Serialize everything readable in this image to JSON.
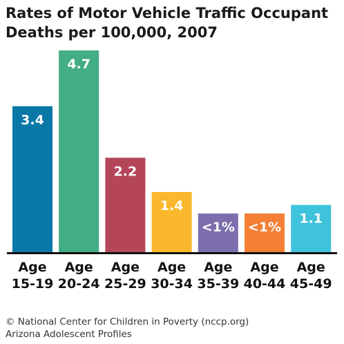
{
  "title_line1": "Rates of Motor Vehicle Traffic Occupant",
  "title_line2": "Deaths per 100,000, 2007",
  "footer_line1": "© National Center for Children in Poverty (nccp.org)",
  "footer_line2": "Arizona Adolescent Profiles",
  "chart_data": {
    "type": "bar",
    "title": "Rates of Motor Vehicle Traffic Occupant Deaths per 100,000, 2007",
    "categories": [
      "Age 15-19",
      "Age 20-24",
      "Age 25-29",
      "Age 30-34",
      "Age 35-39",
      "Age 40-44",
      "Age 45-49"
    ],
    "category_lines": [
      [
        "Age",
        "15-19"
      ],
      [
        "Age",
        "20-24"
      ],
      [
        "Age",
        "25-29"
      ],
      [
        "Age",
        "30-34"
      ],
      [
        "Age",
        "35-39"
      ],
      [
        "Age",
        "40-44"
      ],
      [
        "Age",
        "45-49"
      ]
    ],
    "values": [
      3.4,
      4.7,
      2.2,
      1.4,
      0.9,
      0.9,
      1.1
    ],
    "value_labels": [
      "3.4",
      "4.7",
      "2.2",
      "1.4",
      "<1%",
      "<1%",
      "1.1"
    ],
    "colors": [
      "#0a78a6",
      "#43ad84",
      "#b5465a",
      "#fbb82c",
      "#7c6ead",
      "#f47f35",
      "#3fc3dc"
    ],
    "ylim": [
      0,
      4.7
    ],
    "grid": false,
    "legend": "none"
  }
}
